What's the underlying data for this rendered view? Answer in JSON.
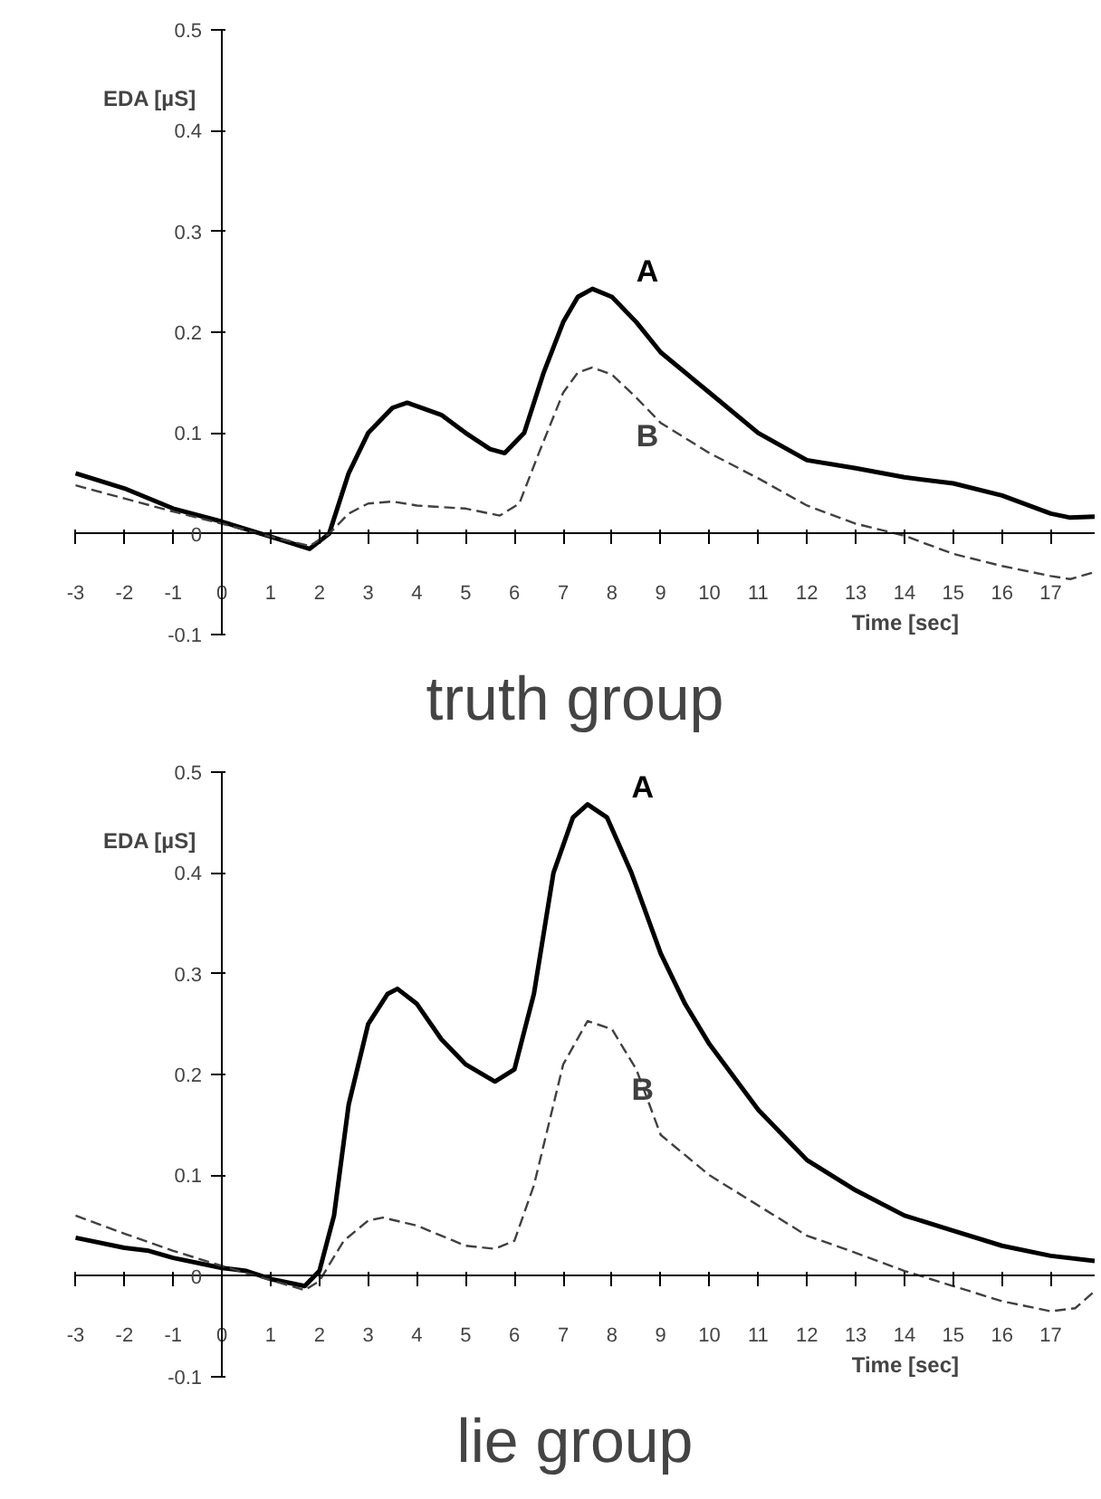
{
  "chart_data": [
    {
      "type": "line",
      "title": "truth group",
      "xlabel": "Time [sec]",
      "ylabel": "EDA [µS]",
      "xlim": [
        -3,
        17.9
      ],
      "ylim": [
        -0.1,
        0.5
      ],
      "xticks": [
        -3,
        -2,
        -1,
        0,
        1,
        2,
        3,
        4,
        5,
        6,
        7,
        8,
        9,
        10,
        11,
        12,
        13,
        14,
        15,
        16,
        17
      ],
      "yticks": [
        -0.1,
        0,
        0.1,
        0.2,
        0.3,
        0.4,
        0.5
      ],
      "grid": false,
      "marker": "none",
      "series": [
        {
          "name": "A",
          "color": "#000000",
          "line_style": "solid",
          "x": [
            -3,
            -2,
            -1,
            0,
            1,
            1.8,
            2.2,
            2.6,
            3,
            3.5,
            3.8,
            4.5,
            5,
            5.5,
            5.8,
            6.2,
            6.6,
            7,
            7.3,
            7.6,
            8,
            8.5,
            9,
            10,
            11,
            12,
            13,
            14,
            15,
            16,
            17,
            17.4,
            17.9
          ],
          "values": [
            0.06,
            0.045,
            0.025,
            0.012,
            -0.003,
            -0.015,
            0.0,
            0.06,
            0.1,
            0.125,
            0.13,
            0.118,
            0.1,
            0.084,
            0.08,
            0.1,
            0.16,
            0.21,
            0.235,
            0.243,
            0.235,
            0.21,
            0.18,
            0.14,
            0.1,
            0.073,
            0.065,
            0.056,
            0.05,
            0.038,
            0.02,
            0.016,
            0.017
          ]
        },
        {
          "name": "B",
          "color": "#404040",
          "line_style": "dashed",
          "x": [
            -3,
            -2,
            -1,
            0,
            1,
            1.8,
            2.2,
            2.6,
            3,
            3.5,
            4,
            5,
            5.7,
            6.1,
            6.5,
            7,
            7.3,
            7.6,
            8,
            8.5,
            9,
            10,
            11,
            12,
            13,
            14,
            15,
            16,
            17,
            17.4,
            17.9
          ],
          "values": [
            0.048,
            0.035,
            0.022,
            0.01,
            -0.003,
            -0.012,
            0.0,
            0.02,
            0.03,
            0.032,
            0.028,
            0.025,
            0.018,
            0.03,
            0.08,
            0.14,
            0.16,
            0.165,
            0.158,
            0.135,
            0.11,
            0.08,
            0.055,
            0.028,
            0.01,
            -0.002,
            -0.02,
            -0.032,
            -0.042,
            -0.045,
            -0.038
          ]
        }
      ]
    },
    {
      "type": "line",
      "title": "lie group",
      "xlabel": "Time [sec]",
      "ylabel": "EDA [µS]",
      "xlim": [
        -3,
        17.9
      ],
      "ylim": [
        -0.1,
        0.5
      ],
      "xticks": [
        -3,
        -2,
        -1,
        0,
        1,
        2,
        3,
        4,
        5,
        6,
        7,
        8,
        9,
        10,
        11,
        12,
        13,
        14,
        15,
        16,
        17
      ],
      "yticks": [
        -0.1,
        0,
        0.1,
        0.2,
        0.3,
        0.4,
        0.5
      ],
      "grid": false,
      "marker": "none",
      "series": [
        {
          "name": "A",
          "color": "#000000",
          "line_style": "solid",
          "x": [
            -3,
            -2,
            -1.5,
            -1,
            0,
            0.5,
            1,
            1.7,
            2,
            2.3,
            2.6,
            3,
            3.4,
            3.6,
            4,
            4.5,
            5,
            5.6,
            6,
            6.4,
            6.8,
            7.2,
            7.5,
            7.9,
            8.4,
            9,
            9.5,
            10,
            11,
            12,
            13,
            14,
            15,
            16,
            17,
            17.9
          ],
          "values": [
            0.038,
            0.028,
            0.025,
            0.018,
            0.008,
            0.005,
            -0.003,
            -0.01,
            0.005,
            0.06,
            0.17,
            0.25,
            0.28,
            0.285,
            0.27,
            0.235,
            0.21,
            0.193,
            0.205,
            0.28,
            0.4,
            0.455,
            0.468,
            0.455,
            0.4,
            0.32,
            0.27,
            0.23,
            0.165,
            0.115,
            0.085,
            0.06,
            0.045,
            0.03,
            0.02,
            0.015
          ]
        },
        {
          "name": "B",
          "color": "#404040",
          "line_style": "dashed",
          "x": [
            -3,
            -2,
            -1,
            0,
            1,
            1.7,
            2,
            2.5,
            3,
            3.3,
            4,
            5,
            5.6,
            6,
            6.4,
            7,
            7.5,
            8,
            8.5,
            9,
            10,
            11,
            12,
            13,
            14,
            15,
            16,
            17,
            17.5,
            17.9
          ],
          "values": [
            0.06,
            0.042,
            0.025,
            0.01,
            -0.004,
            -0.014,
            -0.005,
            0.035,
            0.055,
            0.058,
            0.05,
            0.03,
            0.027,
            0.035,
            0.09,
            0.21,
            0.253,
            0.245,
            0.205,
            0.14,
            0.1,
            0.07,
            0.04,
            0.023,
            0.005,
            -0.01,
            -0.025,
            -0.035,
            -0.032,
            -0.015
          ]
        }
      ]
    }
  ]
}
